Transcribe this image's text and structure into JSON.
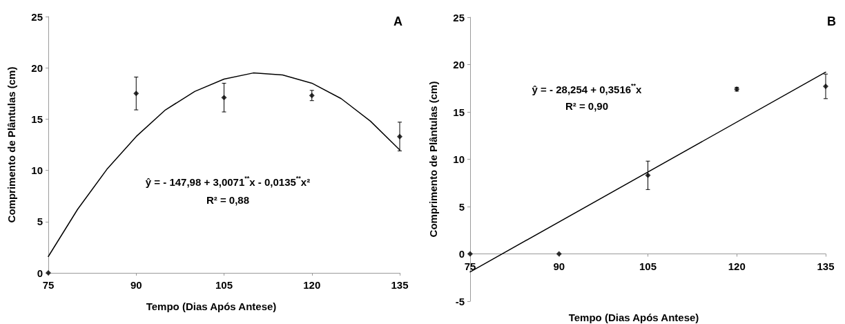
{
  "chart_data": [
    {
      "type": "scatter",
      "xlabel": "Tempo (Dias Após Antese)",
      "ylabel": "Comprimento de Plântulas (cm)",
      "xlim": [
        75,
        135
      ],
      "xticks": [
        75,
        90,
        105,
        120,
        135
      ],
      "ylim": [
        0,
        25
      ],
      "yticks": [
        0,
        5,
        10,
        15,
        20,
        25
      ],
      "grid": false,
      "marker": "diamond",
      "annotations": [
        "A",
        "ŷ = - 147,98 + 3,0071$^{**}$x - 0,0135$^{**}$x²",
        "R² = 0,88"
      ],
      "series": [
        {
          "color": "#000000",
          "x": [
            75,
            90,
            105,
            120,
            135
          ],
          "values": [
            0,
            17.5,
            17.1,
            17.3,
            13.3
          ],
          "errors": [
            null,
            1.6,
            1.4,
            0.5,
            1.4
          ]
        },
        {
          "type": "line",
          "color": "#000000",
          "marker": "none",
          "x": [
            75,
            80,
            85,
            90,
            95,
            100,
            105,
            110,
            115,
            120,
            125,
            130,
            135
          ],
          "values": [
            1.6,
            6.2,
            10.1,
            13.3,
            15.9,
            17.7,
            18.9,
            19.5,
            19.3,
            18.5,
            17.0,
            14.8,
            12.0
          ]
        }
      ]
    },
    {
      "type": "scatter",
      "xlabel": "Tempo (Dias Após Antese)",
      "ylabel": "Comprimento de Plântulas (cm)",
      "xlim": [
        75,
        135
      ],
      "xticks": [
        75,
        90,
        105,
        120,
        135
      ],
      "ylim": [
        -5,
        25
      ],
      "yticks": [
        -5,
        0,
        5,
        10,
        15,
        20,
        25
      ],
      "grid": false,
      "marker": "diamond",
      "annotations": [
        "B",
        "ŷ = - 28,254 + 0,3516$^{**}$x",
        "R² = 0,90"
      ],
      "series": [
        {
          "color": "#000000",
          "x": [
            75,
            90,
            105,
            120,
            135
          ],
          "values": [
            0,
            0,
            8.3,
            17.4,
            17.7
          ],
          "errors": [
            null,
            null,
            1.5,
            0.2,
            1.3
          ]
        },
        {
          "type": "line",
          "color": "#000000",
          "marker": "none",
          "x": [
            75,
            135
          ],
          "values": [
            -1.9,
            19.2
          ]
        }
      ]
    }
  ]
}
